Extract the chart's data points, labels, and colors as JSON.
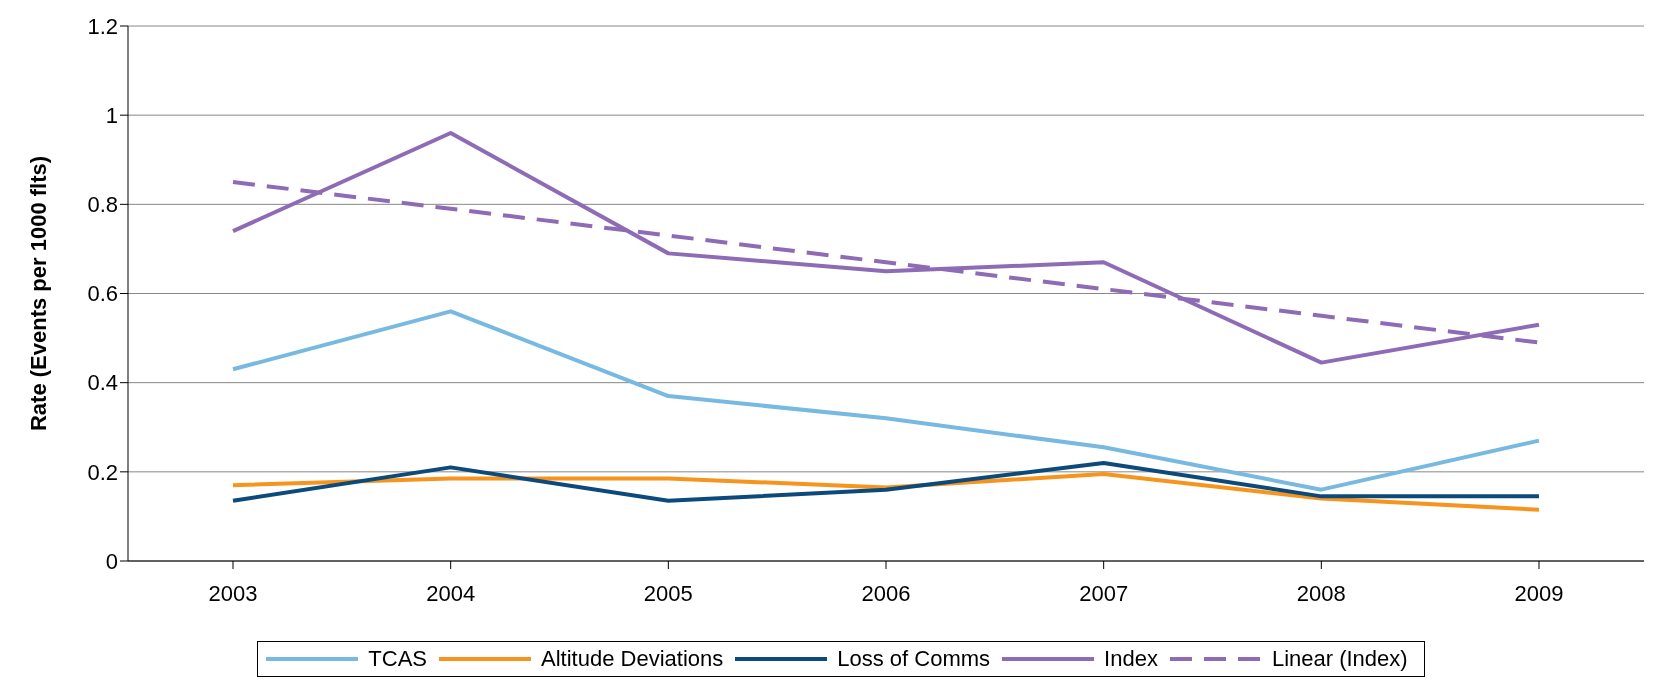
{
  "chart_data": {
    "type": "line",
    "ylabel": "Rate (Events per 1000 flts)",
    "categories": [
      "2003",
      "2004",
      "2005",
      "2006",
      "2007",
      "2008",
      "2009"
    ],
    "ylim": [
      0,
      1.2
    ],
    "yticks": [
      0,
      0.2,
      0.4,
      0.6,
      0.8,
      1,
      1.2
    ],
    "grid": "y",
    "legend": "bottom",
    "marker": "none",
    "series": [
      {
        "name": "TCAS",
        "color": "#77b9e0",
        "values": [
          0.43,
          0.56,
          0.37,
          0.32,
          0.255,
          0.16,
          0.27
        ]
      },
      {
        "name": "Altitude Deviations",
        "color": "#f7941d",
        "values": [
          0.17,
          0.185,
          0.185,
          0.165,
          0.195,
          0.14,
          0.115
        ]
      },
      {
        "name": "Loss of Comms",
        "color": "#0d4a7c",
        "values": [
          0.135,
          0.21,
          0.135,
          0.16,
          0.22,
          0.145,
          0.145
        ]
      },
      {
        "name": "Index",
        "color": "#8e6bb5",
        "values": [
          0.74,
          0.96,
          0.69,
          0.65,
          0.67,
          0.445,
          0.53
        ]
      },
      {
        "name": "Linear (Index)",
        "color": "#8e6bb5",
        "line_style": "dashed",
        "values": [
          0.85,
          0.79,
          0.73,
          0.67,
          0.61,
          0.55,
          0.49
        ]
      }
    ]
  }
}
